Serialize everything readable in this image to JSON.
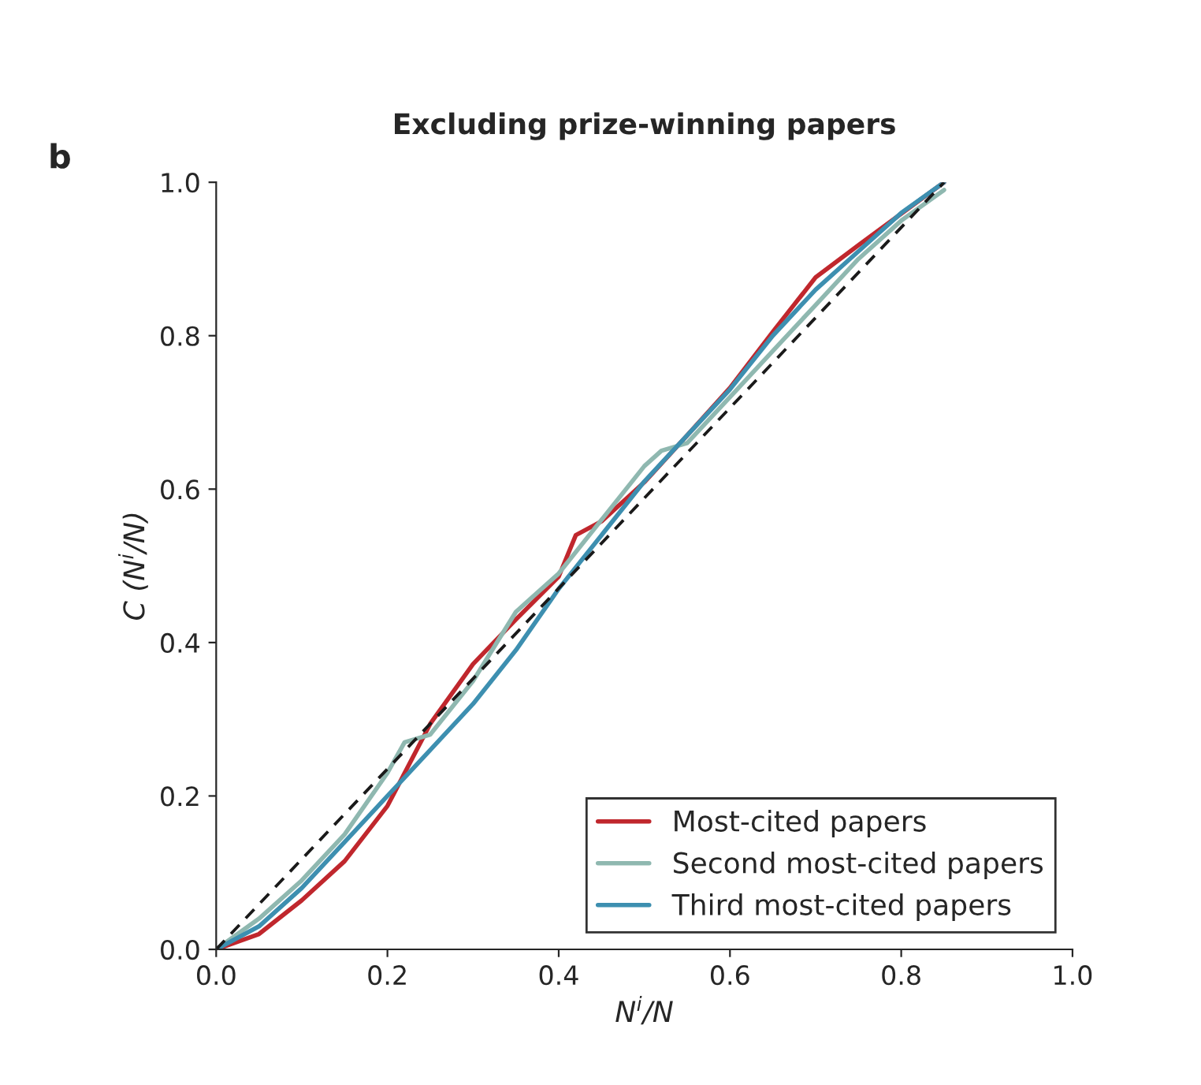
{
  "chart_data": {
    "type": "line",
    "title": "Excluding prize-winning papers",
    "xlabel": "N$^{i}$/N",
    "ylabel": "C (N$^{i}$/N)",
    "annotations": [
      "b"
    ],
    "xlim": [
      0.0,
      1.0
    ],
    "ylim": [
      0.0,
      1.0
    ],
    "xticks": [
      {
        "value": 0.0,
        "label": "0.0"
      },
      0.2,
      0.4,
      0.6,
      0.8,
      {
        "value": 1.0,
        "label": "1.0"
      }
    ],
    "yticks": [
      {
        "value": 0.0,
        "label": "0.0"
      },
      0.2,
      0.4,
      0.6,
      0.8,
      {
        "value": 1.0,
        "label": "1.0"
      }
    ],
    "grid": false,
    "legend": "bottom right",
    "marker": "none",
    "series": [
      {
        "name": "Most-cited papers",
        "color": "#c0272d",
        "line_style": "solid",
        "x": [
          0,
          0.05,
          0.1,
          0.15,
          0.2,
          0.25,
          0.3,
          0.35,
          0.4,
          0.42,
          0.45,
          0.5,
          0.55,
          0.6,
          0.65,
          0.7,
          0.75,
          0.8,
          0.85
        ],
        "values": [
          0,
          0.02,
          0.064,
          0.115,
          0.187,
          0.294,
          0.372,
          0.43,
          0.486,
          0.54,
          0.558,
          0.609,
          0.67,
          0.732,
          0.805,
          0.876,
          0.918,
          0.959,
          1.0
        ]
      },
      {
        "name": "Second most-cited papers",
        "color": "#8fb8b0",
        "line_style": "solid",
        "x": [
          0,
          0.05,
          0.1,
          0.15,
          0.2,
          0.22,
          0.25,
          0.3,
          0.35,
          0.4,
          0.45,
          0.5,
          0.52,
          0.55,
          0.6,
          0.65,
          0.7,
          0.75,
          0.8,
          0.85
        ],
        "values": [
          0,
          0.04,
          0.09,
          0.15,
          0.23,
          0.27,
          0.28,
          0.35,
          0.44,
          0.49,
          0.56,
          0.63,
          0.65,
          0.66,
          0.72,
          0.78,
          0.84,
          0.9,
          0.95,
          0.99
        ]
      },
      {
        "name": "Third most-cited papers",
        "color": "#3d8fb0",
        "line_style": "solid",
        "x": [
          0,
          0.05,
          0.1,
          0.15,
          0.2,
          0.25,
          0.3,
          0.35,
          0.4,
          0.45,
          0.5,
          0.55,
          0.6,
          0.65,
          0.7,
          0.75,
          0.8,
          0.85
        ],
        "values": [
          0,
          0.03,
          0.08,
          0.14,
          0.2,
          0.26,
          0.32,
          0.39,
          0.47,
          0.54,
          0.61,
          0.67,
          0.73,
          0.8,
          0.86,
          0.91,
          0.96,
          1.0
        ]
      },
      {
        "color": "#1a1a1a",
        "line_style": "dashed",
        "x": [
          0,
          0.85
        ],
        "values": [
          0,
          1.0
        ]
      }
    ]
  }
}
